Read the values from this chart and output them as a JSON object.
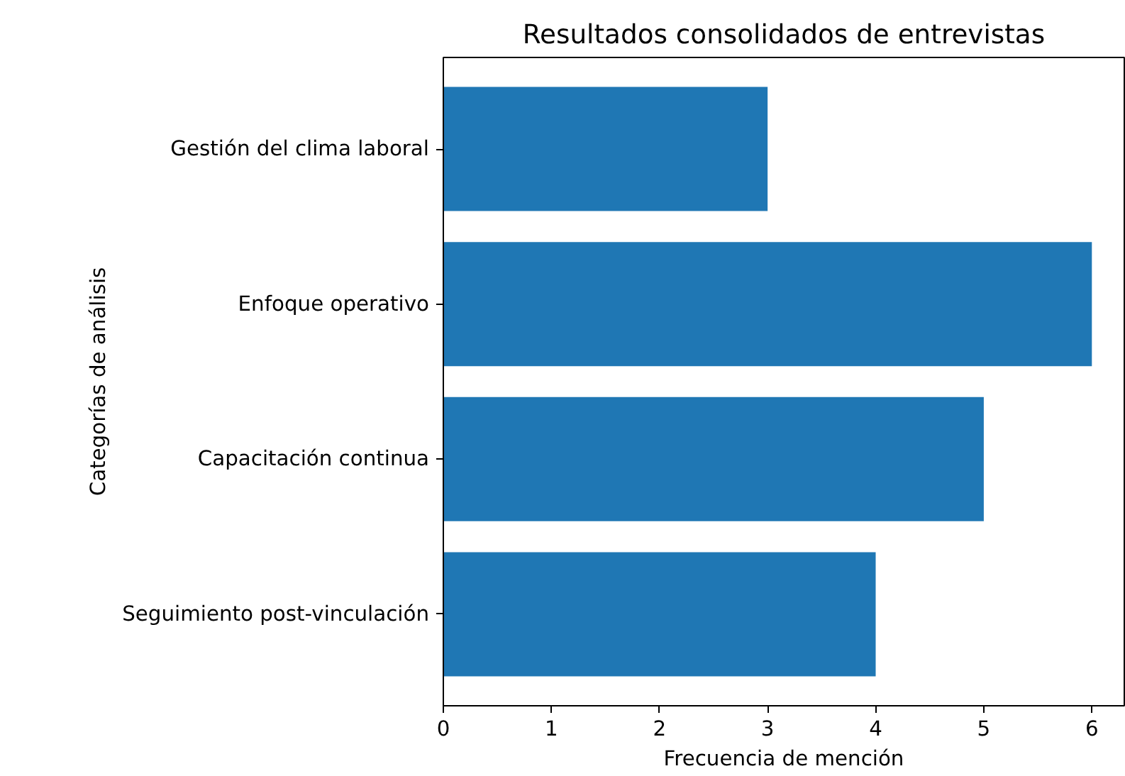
{
  "chart_data": {
    "type": "bar",
    "orientation": "horizontal",
    "title": "Resultados consolidados de entrevistas",
    "xlabel": "Frecuencia de mención",
    "ylabel": "Categorías de análisis",
    "categories": [
      "Gestión del clima laboral",
      "Enfoque operativo",
      "Capacitación continua",
      "Seguimiento post-vinculación"
    ],
    "values": [
      3,
      6,
      5,
      4
    ],
    "color": "#1f77b4",
    "xlim": [
      0,
      6.3
    ],
    "xticks": [
      0,
      1,
      2,
      3,
      4,
      5,
      6
    ],
    "grid": false
  }
}
